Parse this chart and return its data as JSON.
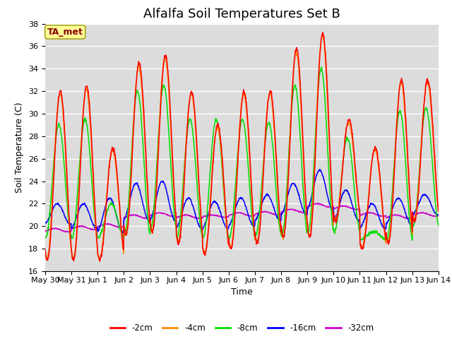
{
  "title": "Alfalfa Soil Temperatures Set B",
  "xlabel": "Time",
  "ylabel": "Soil Temperature (C)",
  "ylim": [
    16,
    38
  ],
  "yticks": [
    16,
    18,
    20,
    22,
    24,
    26,
    28,
    30,
    32,
    34,
    36,
    38
  ],
  "background_color": "#dcdcdc",
  "fig_bg": "#ffffff",
  "annotation_text": "TA_met",
  "annotation_color": "#8b0000",
  "annotation_bg": "#ffff99",
  "annotation_edge": "#999900",
  "legend_labels": [
    "-2cm",
    "-4cm",
    "-8cm",
    "-16cm",
    "-32cm"
  ],
  "line_colors": [
    "#ff0000",
    "#ff8800",
    "#00dd00",
    "#0000ff",
    "#cc00cc"
  ],
  "title_fontsize": 13,
  "axis_fontsize": 9,
  "tick_fontsize": 8
}
